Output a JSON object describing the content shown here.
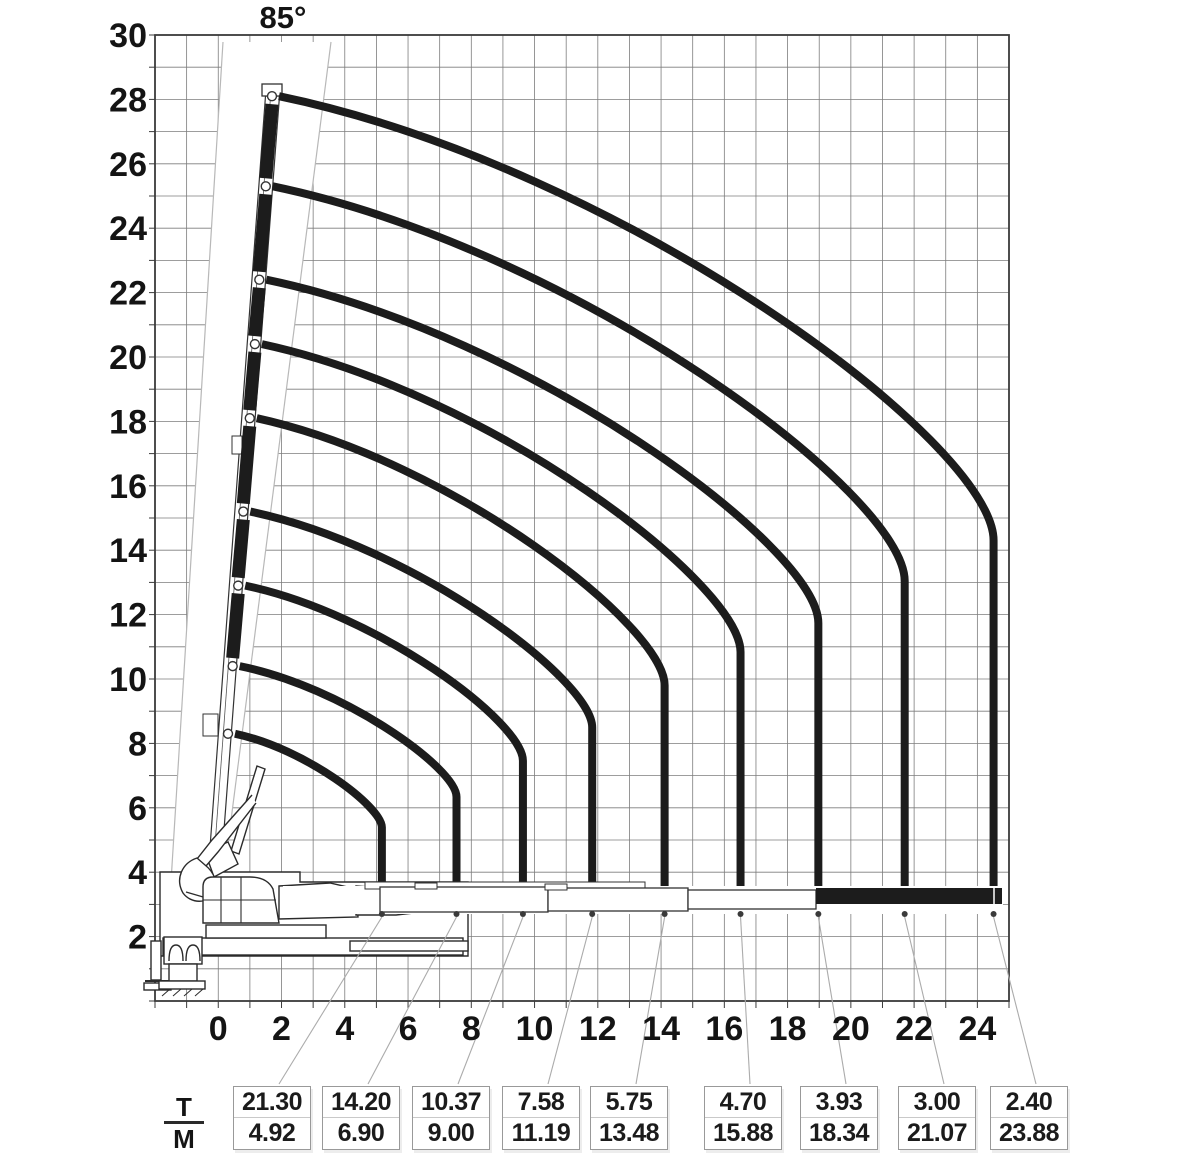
{
  "boom_angle_label": "85°",
  "legend": {
    "numerator": "T",
    "denominator": "M"
  },
  "chart_data": {
    "type": "line",
    "title": "85° crane working-range / load capacity diagram",
    "boom_max_angle_deg": 85,
    "x_axis": {
      "ticks": [
        0,
        2,
        4,
        6,
        8,
        10,
        12,
        14,
        16,
        18,
        20,
        22,
        24
      ],
      "range_m": [
        -2,
        25
      ],
      "grid_step_m": 1
    },
    "y_axis": {
      "ticks": [
        30,
        28,
        26,
        24,
        22,
        20,
        18,
        16,
        14,
        12,
        10,
        8,
        6,
        4,
        2
      ],
      "range_m": [
        0,
        30
      ],
      "grid_step_m": 1
    },
    "capacities": [
      {
        "tons": "21.30",
        "outreach_m": "4.92"
      },
      {
        "tons": "14.20",
        "outreach_m": "6.90"
      },
      {
        "tons": "10.37",
        "outreach_m": "9.00"
      },
      {
        "tons": "7.58",
        "outreach_m": "11.19"
      },
      {
        "tons": "5.75",
        "outreach_m": "13.48"
      },
      {
        "tons": "4.70",
        "outreach_m": "15.88"
      },
      {
        "tons": "3.93",
        "outreach_m": "18.34"
      },
      {
        "tons": "3.00",
        "outreach_m": "21.07"
      },
      {
        "tons": "2.40",
        "outreach_m": "23.88"
      }
    ],
    "curve_top_heights_m": [
      8.3,
      10.4,
      12.9,
      15.2,
      18.1,
      20.4,
      22.4,
      25.3,
      28.1
    ],
    "colors": {
      "curve": "#1c1c1c",
      "grid": "#7d7d7d",
      "frame": "#3b3b3b",
      "machine": "#2b2b2b",
      "leader": "#ababab",
      "ray": "#b8b8b8",
      "text": "#141414",
      "box_border": "#999999",
      "box_divider": "#c9c9c9"
    }
  }
}
